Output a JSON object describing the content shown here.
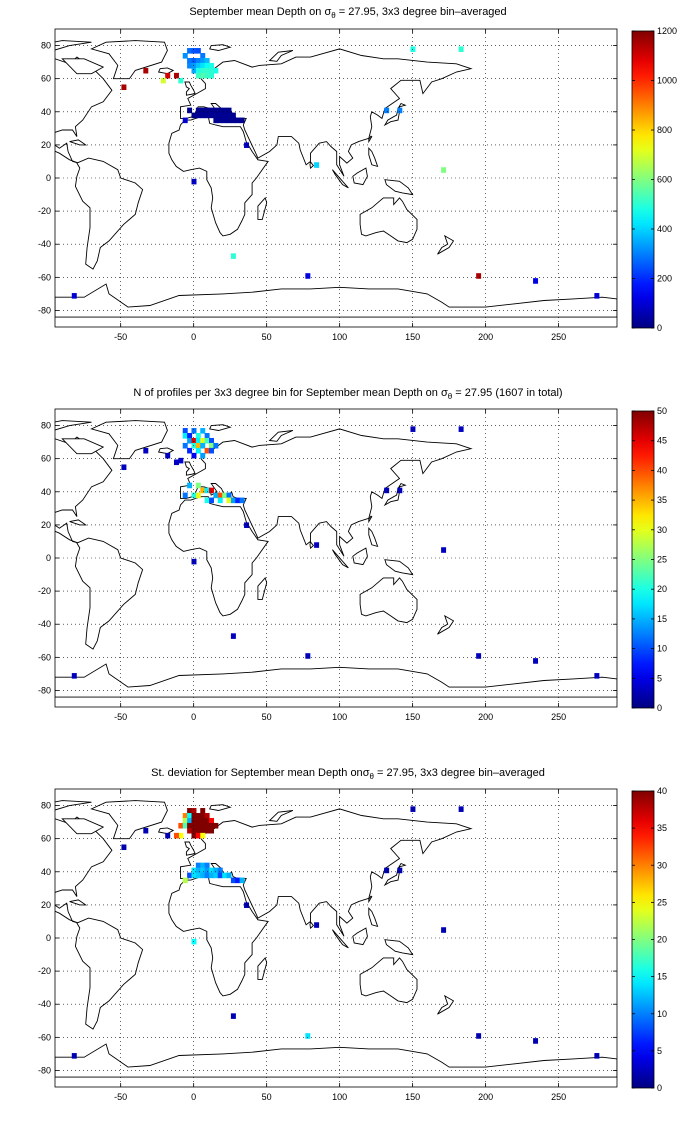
{
  "chart_data": [
    {
      "type": "heatmap",
      "title_prefix": "September mean Depth on ",
      "title_symbol": "σ",
      "title_sub": "θ",
      "title_suffix": " = 27.95, 3x3 degree bin–averaged",
      "xlim": [
        -95,
        290
      ],
      "ylim": [
        -90,
        90
      ],
      "xticks": [
        -50,
        0,
        50,
        100,
        150,
        200,
        250
      ],
      "yticks": [
        -80,
        -60,
        -40,
        -20,
        0,
        20,
        40,
        60,
        80
      ],
      "grid": true,
      "colorbar": {
        "min": 0,
        "max": 1200,
        "ticks": [
          0,
          200,
          400,
          600,
          800,
          1000,
          1200
        ]
      },
      "cells": [
        {
          "x": -48,
          "y": 55,
          "v": 1150
        },
        {
          "x": -33,
          "y": 65,
          "v": 1150
        },
        {
          "x": -18,
          "y": 62,
          "v": 1100
        },
        {
          "x": -12,
          "y": 62,
          "v": 1150
        },
        {
          "x": -21,
          "y": 59,
          "v": 700
        },
        {
          "x": -6,
          "y": 74,
          "v": 320
        },
        {
          "x": -3,
          "y": 77,
          "v": 280
        },
        {
          "x": 0,
          "y": 77,
          "v": 250
        },
        {
          "x": 3,
          "y": 77,
          "v": 240
        },
        {
          "x": 6,
          "y": 74,
          "v": 290
        },
        {
          "x": -3,
          "y": 71,
          "v": 290
        },
        {
          "x": 0,
          "y": 71,
          "v": 260
        },
        {
          "x": 3,
          "y": 71,
          "v": 300
        },
        {
          "x": 6,
          "y": 71,
          "v": 330
        },
        {
          "x": 9,
          "y": 71,
          "v": 370
        },
        {
          "x": -3,
          "y": 68,
          "v": 310
        },
        {
          "x": 0,
          "y": 68,
          "v": 330
        },
        {
          "x": 3,
          "y": 68,
          "v": 380
        },
        {
          "x": 6,
          "y": 68,
          "v": 420
        },
        {
          "x": 9,
          "y": 68,
          "v": 460
        },
        {
          "x": 12,
          "y": 68,
          "v": 480
        },
        {
          "x": 0,
          "y": 65,
          "v": 350
        },
        {
          "x": 3,
          "y": 65,
          "v": 480
        },
        {
          "x": 6,
          "y": 65,
          "v": 500
        },
        {
          "x": 9,
          "y": 65,
          "v": 510
        },
        {
          "x": 12,
          "y": 65,
          "v": 500
        },
        {
          "x": 15,
          "y": 65,
          "v": 480
        },
        {
          "x": 3,
          "y": 62,
          "v": 520
        },
        {
          "x": 6,
          "y": 62,
          "v": 540
        },
        {
          "x": 9,
          "y": 62,
          "v": 520
        },
        {
          "x": 12,
          "y": 62,
          "v": 500
        },
        {
          "x": -9,
          "y": 59,
          "v": 500
        },
        {
          "x": -3,
          "y": 41,
          "v": 20
        },
        {
          "x": 3,
          "y": 41,
          "v": 20
        },
        {
          "x": 6,
          "y": 41,
          "v": 20
        },
        {
          "x": 9,
          "y": 41,
          "v": 20
        },
        {
          "x": 12,
          "y": 41,
          "v": 20
        },
        {
          "x": 15,
          "y": 41,
          "v": 20
        },
        {
          "x": 18,
          "y": 41,
          "v": 20
        },
        {
          "x": 21,
          "y": 41,
          "v": 20
        },
        {
          "x": 24,
          "y": 41,
          "v": 20
        },
        {
          "x": 0,
          "y": 38,
          "v": 20
        },
        {
          "x": 3,
          "y": 38,
          "v": 20
        },
        {
          "x": 6,
          "y": 38,
          "v": 20
        },
        {
          "x": 9,
          "y": 38,
          "v": 20
        },
        {
          "x": 12,
          "y": 38,
          "v": 20
        },
        {
          "x": 15,
          "y": 38,
          "v": 20
        },
        {
          "x": 18,
          "y": 38,
          "v": 20
        },
        {
          "x": 21,
          "y": 38,
          "v": 20
        },
        {
          "x": 24,
          "y": 38,
          "v": 20
        },
        {
          "x": 27,
          "y": 38,
          "v": 20
        },
        {
          "x": 15,
          "y": 35,
          "v": 20
        },
        {
          "x": 18,
          "y": 35,
          "v": 20
        },
        {
          "x": 21,
          "y": 35,
          "v": 20
        },
        {
          "x": 24,
          "y": 35,
          "v": 20
        },
        {
          "x": 27,
          "y": 35,
          "v": 20
        },
        {
          "x": 30,
          "y": 35,
          "v": 20
        },
        {
          "x": 33,
          "y": 35,
          "v": 20
        },
        {
          "x": -6,
          "y": 35,
          "v": 100
        },
        {
          "x": 36,
          "y": 20,
          "v": 80
        },
        {
          "x": 0,
          "y": -2,
          "v": 80
        },
        {
          "x": 150,
          "y": 78,
          "v": 480
        },
        {
          "x": 183,
          "y": 78,
          "v": 500
        },
        {
          "x": 132,
          "y": 41,
          "v": 300
        },
        {
          "x": 141,
          "y": 41,
          "v": 300
        },
        {
          "x": 84,
          "y": 8,
          "v": 400
        },
        {
          "x": 171,
          "y": 5,
          "v": 600
        },
        {
          "x": 78,
          "y": -59,
          "v": 120
        },
        {
          "x": 27,
          "y": -47,
          "v": 500
        },
        {
          "x": 195,
          "y": -59,
          "v": 1150
        },
        {
          "x": 234,
          "y": -62,
          "v": 120
        },
        {
          "x": -82,
          "y": -71,
          "v": 100
        },
        {
          "x": 276,
          "y": -71,
          "v": 100
        }
      ]
    },
    {
      "type": "heatmap",
      "title_prefix": "N of profiles per 3x3 degree bin for September mean Depth on ",
      "title_symbol": "σ",
      "title_sub": "θ",
      "title_suffix": " = 27.95 (1607 in total)",
      "xlim": [
        -95,
        290
      ],
      "ylim": [
        -90,
        90
      ],
      "xticks": [
        -50,
        0,
        50,
        100,
        150,
        200,
        250
      ],
      "yticks": [
        -80,
        -60,
        -40,
        -20,
        0,
        20,
        40,
        60,
        80
      ],
      "grid": true,
      "colorbar": {
        "min": 0,
        "max": 50,
        "ticks": [
          0,
          5,
          10,
          15,
          20,
          25,
          30,
          35,
          40,
          45,
          50
        ]
      },
      "cells": [
        {
          "x": -48,
          "y": 55,
          "v": 3
        },
        {
          "x": -33,
          "y": 65,
          "v": 3
        },
        {
          "x": -18,
          "y": 62,
          "v": 3
        },
        {
          "x": -12,
          "y": 58,
          "v": 3
        },
        {
          "x": -6,
          "y": 77,
          "v": 10
        },
        {
          "x": 0,
          "y": 77,
          "v": 12
        },
        {
          "x": 6,
          "y": 77,
          "v": 15
        },
        {
          "x": -6,
          "y": 74,
          "v": 18
        },
        {
          "x": -3,
          "y": 74,
          "v": 8
        },
        {
          "x": 3,
          "y": 74,
          "v": 20
        },
        {
          "x": 9,
          "y": 74,
          "v": 12
        },
        {
          "x": -3,
          "y": 71,
          "v": 14
        },
        {
          "x": 0,
          "y": 71,
          "v": 45
        },
        {
          "x": 3,
          "y": 71,
          "v": 18
        },
        {
          "x": 6,
          "y": 71,
          "v": 30
        },
        {
          "x": 9,
          "y": 71,
          "v": 22
        },
        {
          "x": 12,
          "y": 71,
          "v": 10
        },
        {
          "x": -6,
          "y": 68,
          "v": 12
        },
        {
          "x": 0,
          "y": 68,
          "v": 20
        },
        {
          "x": 3,
          "y": 68,
          "v": 35
        },
        {
          "x": 6,
          "y": 68,
          "v": 15
        },
        {
          "x": 12,
          "y": 68,
          "v": 25
        },
        {
          "x": 15,
          "y": 68,
          "v": 12
        },
        {
          "x": -3,
          "y": 65,
          "v": 8
        },
        {
          "x": 3,
          "y": 65,
          "v": 18
        },
        {
          "x": 9,
          "y": 65,
          "v": 40
        },
        {
          "x": 12,
          "y": 65,
          "v": 10
        },
        {
          "x": 0,
          "y": 62,
          "v": 6
        },
        {
          "x": 6,
          "y": 62,
          "v": 14
        },
        {
          "x": -9,
          "y": 59,
          "v": 4
        },
        {
          "x": -3,
          "y": 44,
          "v": 15
        },
        {
          "x": 3,
          "y": 44,
          "v": 25
        },
        {
          "x": 6,
          "y": 41,
          "v": 35
        },
        {
          "x": 9,
          "y": 41,
          "v": 18
        },
        {
          "x": 12,
          "y": 41,
          "v": 45
        },
        {
          "x": -6,
          "y": 38,
          "v": 12
        },
        {
          "x": 0,
          "y": 38,
          "v": 20
        },
        {
          "x": 3,
          "y": 38,
          "v": 30
        },
        {
          "x": 15,
          "y": 38,
          "v": 15
        },
        {
          "x": 18,
          "y": 38,
          "v": 40
        },
        {
          "x": 21,
          "y": 38,
          "v": 25
        },
        {
          "x": 24,
          "y": 38,
          "v": 12
        },
        {
          "x": 9,
          "y": 35,
          "v": 20
        },
        {
          "x": 12,
          "y": 35,
          "v": 10
        },
        {
          "x": 18,
          "y": 35,
          "v": 18
        },
        {
          "x": 24,
          "y": 35,
          "v": 30
        },
        {
          "x": 27,
          "y": 35,
          "v": 14
        },
        {
          "x": 30,
          "y": 35,
          "v": 8
        },
        {
          "x": 33,
          "y": 35,
          "v": 12
        },
        {
          "x": 36,
          "y": 20,
          "v": 3
        },
        {
          "x": 0,
          "y": -2,
          "v": 3
        },
        {
          "x": 150,
          "y": 78,
          "v": 3
        },
        {
          "x": 183,
          "y": 78,
          "v": 3
        },
        {
          "x": 132,
          "y": 41,
          "v": 3
        },
        {
          "x": 141,
          "y": 41,
          "v": 3
        },
        {
          "x": 84,
          "y": 8,
          "v": 3
        },
        {
          "x": 171,
          "y": 5,
          "v": 3
        },
        {
          "x": 78,
          "y": -59,
          "v": 3
        },
        {
          "x": 27,
          "y": -47,
          "v": 3
        },
        {
          "x": 195,
          "y": -59,
          "v": 3
        },
        {
          "x": 234,
          "y": -62,
          "v": 3
        },
        {
          "x": -82,
          "y": -71,
          "v": 3
        },
        {
          "x": 276,
          "y": -71,
          "v": 3
        }
      ]
    },
    {
      "type": "heatmap",
      "title_prefix": "St. deviation for September mean Depth on",
      "title_symbol": "σ",
      "title_sub": "θ",
      "title_suffix": " = 27.95, 3x3 degree bin–averaged",
      "xlim": [
        -95,
        290
      ],
      "ylim": [
        -90,
        90
      ],
      "xticks": [
        -50,
        0,
        50,
        100,
        150,
        200,
        250
      ],
      "yticks": [
        -80,
        -60,
        -40,
        -20,
        0,
        20,
        40,
        60,
        80
      ],
      "grid": true,
      "colorbar": {
        "min": 0,
        "max": 40,
        "ticks": [
          0,
          5,
          10,
          15,
          20,
          25,
          30,
          35,
          40
        ]
      },
      "cells": [
        {
          "x": -48,
          "y": 55,
          "v": 2
        },
        {
          "x": -33,
          "y": 65,
          "v": 2
        },
        {
          "x": -18,
          "y": 62,
          "v": 2
        },
        {
          "x": -3,
          "y": 77,
          "v": 40
        },
        {
          "x": 0,
          "y": 77,
          "v": 38
        },
        {
          "x": 3,
          "y": 74,
          "v": 40
        },
        {
          "x": 6,
          "y": 77,
          "v": 40
        },
        {
          "x": -6,
          "y": 74,
          "v": 30
        },
        {
          "x": -3,
          "y": 74,
          "v": 15
        },
        {
          "x": 0,
          "y": 74,
          "v": 40
        },
        {
          "x": 6,
          "y": 74,
          "v": 40
        },
        {
          "x": 9,
          "y": 74,
          "v": 38
        },
        {
          "x": -6,
          "y": 71,
          "v": 22
        },
        {
          "x": -3,
          "y": 71,
          "v": 12
        },
        {
          "x": 0,
          "y": 71,
          "v": 40
        },
        {
          "x": 3,
          "y": 71,
          "v": 40
        },
        {
          "x": 6,
          "y": 71,
          "v": 40
        },
        {
          "x": 9,
          "y": 71,
          "v": 40
        },
        {
          "x": 12,
          "y": 71,
          "v": 35
        },
        {
          "x": -9,
          "y": 68,
          "v": 32
        },
        {
          "x": -6,
          "y": 68,
          "v": 18
        },
        {
          "x": -3,
          "y": 68,
          "v": 40
        },
        {
          "x": 0,
          "y": 68,
          "v": 40
        },
        {
          "x": 3,
          "y": 68,
          "v": 40
        },
        {
          "x": 6,
          "y": 68,
          "v": 40
        },
        {
          "x": 9,
          "y": 68,
          "v": 40
        },
        {
          "x": 12,
          "y": 68,
          "v": 40
        },
        {
          "x": 15,
          "y": 68,
          "v": 40
        },
        {
          "x": -3,
          "y": 65,
          "v": 38
        },
        {
          "x": 0,
          "y": 65,
          "v": 40
        },
        {
          "x": 3,
          "y": 65,
          "v": 40
        },
        {
          "x": 6,
          "y": 65,
          "v": 40
        },
        {
          "x": 9,
          "y": 65,
          "v": 40
        },
        {
          "x": 12,
          "y": 65,
          "v": 40
        },
        {
          "x": 0,
          "y": 62,
          "v": 40
        },
        {
          "x": 3,
          "y": 62,
          "v": 35
        },
        {
          "x": 6,
          "y": 62,
          "v": 25
        },
        {
          "x": -9,
          "y": 62,
          "v": 25
        },
        {
          "x": -12,
          "y": 62,
          "v": 32
        },
        {
          "x": 3,
          "y": 44,
          "v": 10
        },
        {
          "x": 6,
          "y": 44,
          "v": 12
        },
        {
          "x": 9,
          "y": 44,
          "v": 10
        },
        {
          "x": 0,
          "y": 41,
          "v": 14
        },
        {
          "x": 3,
          "y": 41,
          "v": 12
        },
        {
          "x": 6,
          "y": 41,
          "v": 13
        },
        {
          "x": 9,
          "y": 41,
          "v": 11
        },
        {
          "x": 12,
          "y": 41,
          "v": 14
        },
        {
          "x": 15,
          "y": 41,
          "v": 12
        },
        {
          "x": 18,
          "y": 41,
          "v": 10
        },
        {
          "x": -3,
          "y": 38,
          "v": 8
        },
        {
          "x": 0,
          "y": 38,
          "v": 14
        },
        {
          "x": 3,
          "y": 38,
          "v": 13
        },
        {
          "x": 6,
          "y": 38,
          "v": 12
        },
        {
          "x": 9,
          "y": 38,
          "v": 10
        },
        {
          "x": 12,
          "y": 38,
          "v": 12
        },
        {
          "x": 15,
          "y": 38,
          "v": 13
        },
        {
          "x": 18,
          "y": 38,
          "v": 8
        },
        {
          "x": 21,
          "y": 38,
          "v": 14
        },
        {
          "x": 24,
          "y": 38,
          "v": 12
        },
        {
          "x": 27,
          "y": 35,
          "v": 8
        },
        {
          "x": 30,
          "y": 35,
          "v": 6
        },
        {
          "x": 33,
          "y": 35,
          "v": 12
        },
        {
          "x": -6,
          "y": 35,
          "v": 22
        },
        {
          "x": 36,
          "y": 20,
          "v": 2
        },
        {
          "x": 0,
          "y": -2,
          "v": 15
        },
        {
          "x": 150,
          "y": 78,
          "v": 2
        },
        {
          "x": 183,
          "y": 78,
          "v": 2
        },
        {
          "x": 132,
          "y": 41,
          "v": 2
        },
        {
          "x": 141,
          "y": 41,
          "v": 2
        },
        {
          "x": 84,
          "y": 8,
          "v": 2
        },
        {
          "x": 171,
          "y": 5,
          "v": 2
        },
        {
          "x": 78,
          "y": -59,
          "v": 14
        },
        {
          "x": 27,
          "y": -47,
          "v": 2
        },
        {
          "x": 195,
          "y": -59,
          "v": 2
        },
        {
          "x": 234,
          "y": -62,
          "v": 2
        },
        {
          "x": -82,
          "y": -71,
          "v": 2
        },
        {
          "x": 276,
          "y": -71,
          "v": 2
        }
      ]
    }
  ]
}
